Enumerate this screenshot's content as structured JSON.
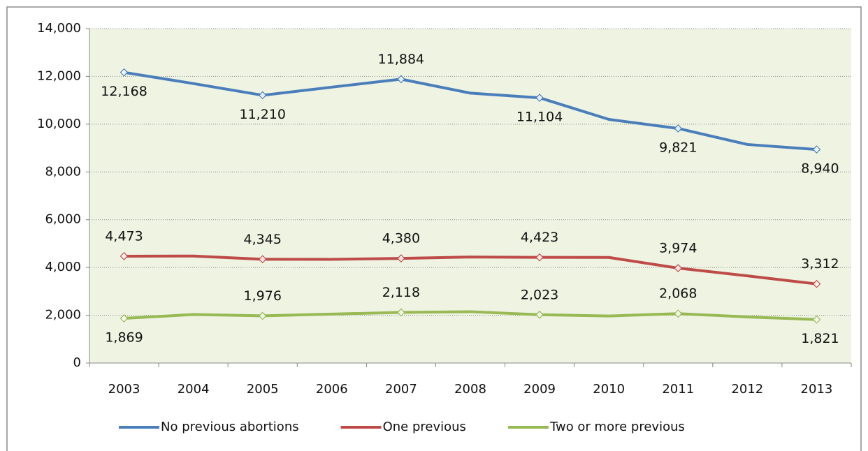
{
  "chart_data": {
    "type": "line",
    "categories": [
      "2003",
      "2004",
      "2005",
      "2006",
      "2007",
      "2008",
      "2009",
      "2010",
      "2011",
      "2012",
      "2013"
    ],
    "series": [
      {
        "name": "No previous abortions",
        "color": "#4a7ebb",
        "values": [
          12168,
          11700,
          11210,
          11550,
          11884,
          11300,
          11104,
          10200,
          9821,
          9150,
          8940
        ],
        "value_labels": [
          "12,168",
          null,
          "11,210",
          null,
          "11,884",
          null,
          "11,104",
          null,
          "9,821",
          null,
          "8,940"
        ]
      },
      {
        "name": "One previous",
        "color": "#be4b48",
        "values": [
          4473,
          4480,
          4345,
          4340,
          4380,
          4440,
          4423,
          4420,
          3974,
          3650,
          3312
        ],
        "value_labels": [
          "4,473",
          null,
          "4,345",
          null,
          "4,380",
          null,
          "4,423",
          null,
          "3,974",
          null,
          "3,312"
        ]
      },
      {
        "name": "Two or more previous",
        "color": "#98b954",
        "values": [
          1869,
          2030,
          1976,
          2050,
          2118,
          2150,
          2023,
          1970,
          2068,
          1930,
          1821
        ],
        "value_labels": [
          "1,869",
          null,
          "1,976",
          null,
          "2,118",
          null,
          "2,023",
          null,
          "2,068",
          null,
          "1,821"
        ]
      }
    ],
    "ylim": [
      0,
      14000
    ],
    "yticks": [
      0,
      {
        "value": 2000,
        "label": "2,000"
      },
      {
        "value": 4000,
        "label": "4,000"
      },
      {
        "value": 6000,
        "label": "6,000"
      },
      {
        "value": 8000,
        "label": "8,000"
      },
      {
        "value": 10000,
        "label": "10,000"
      },
      {
        "value": 12000,
        "label": "12,000"
      },
      {
        "value": 14000,
        "label": "14,000"
      }
    ],
    "grid": true,
    "legend": "bottom"
  }
}
